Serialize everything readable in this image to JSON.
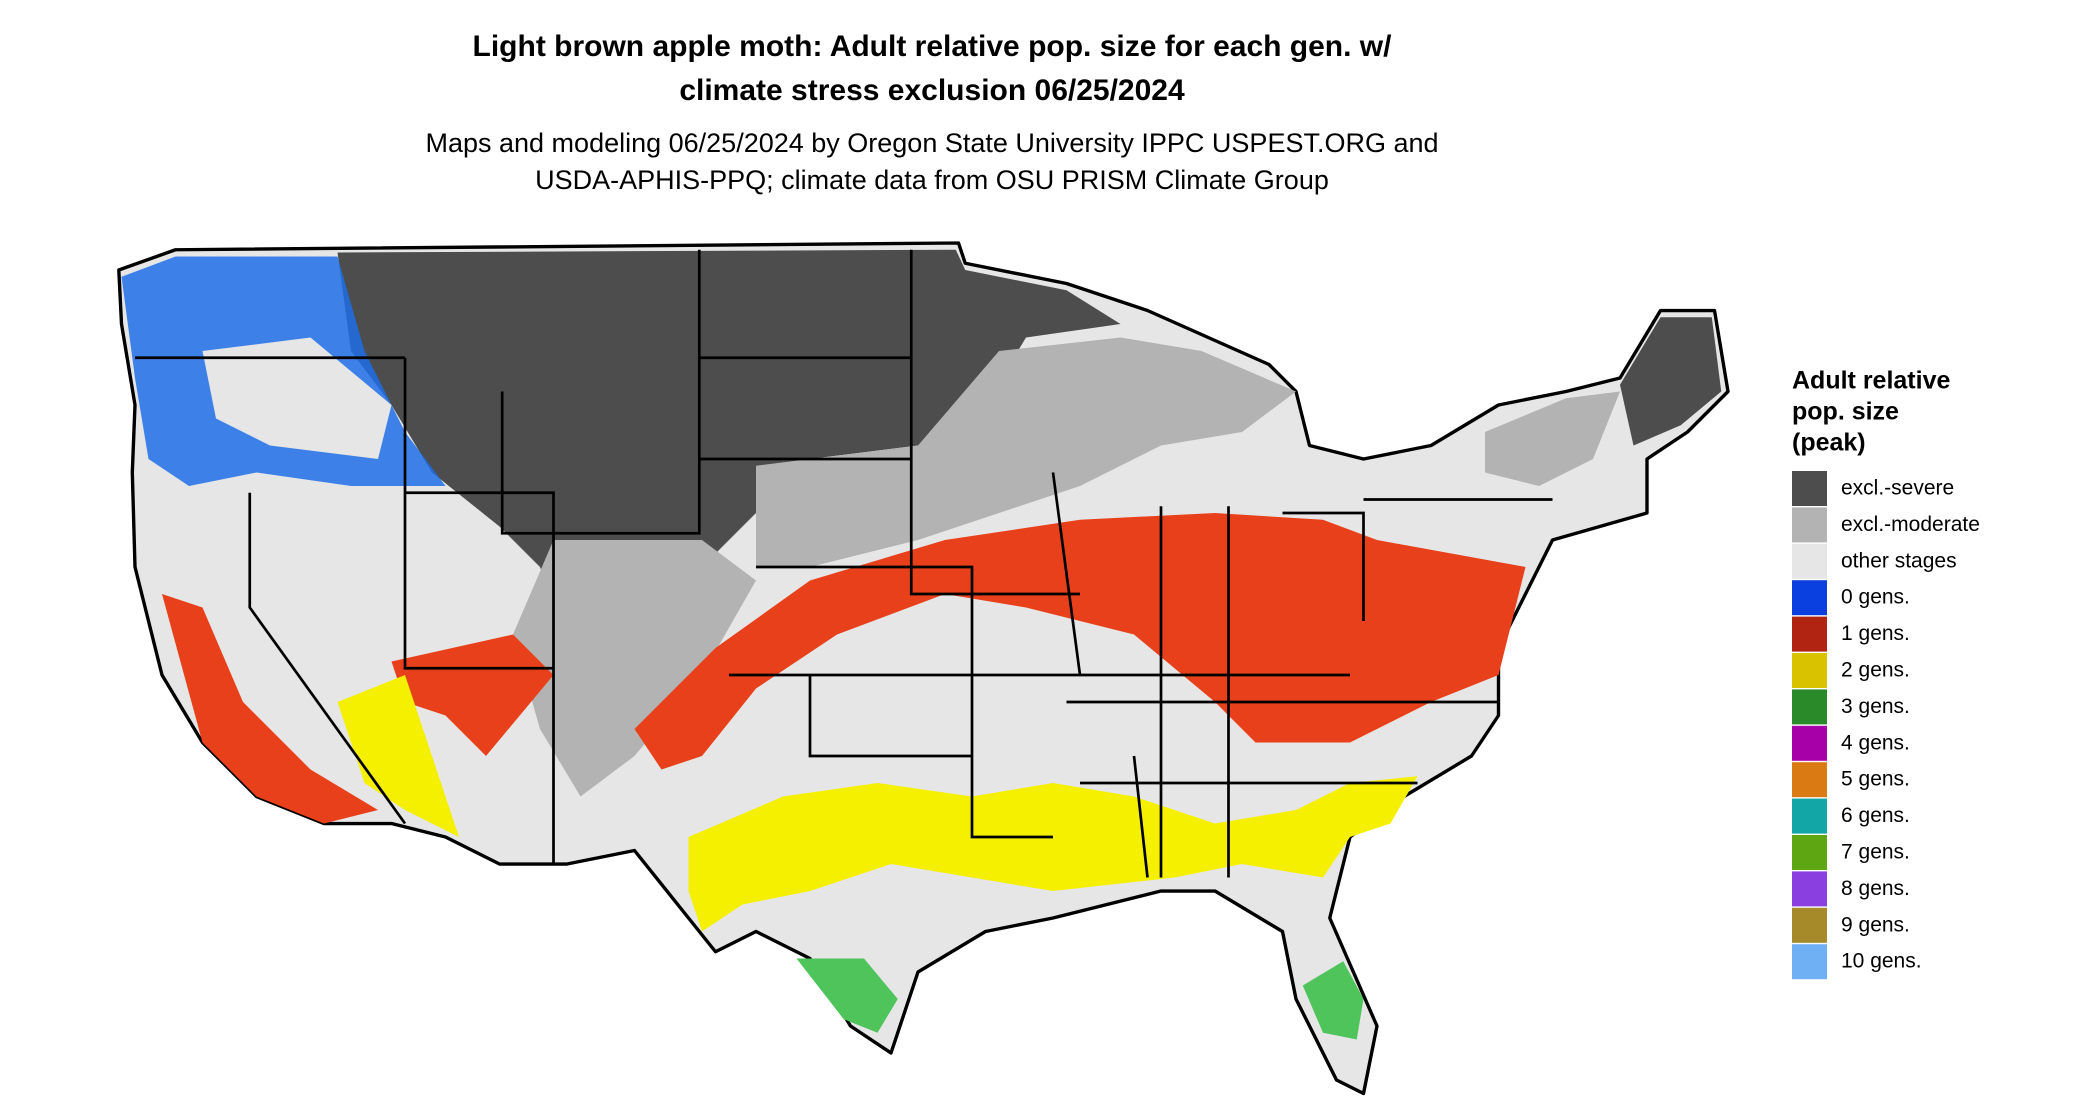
{
  "header": {
    "title_lines": [
      "Light brown apple moth: Adult relative pop. size for each gen. w/",
      "climate stress exclusion 06/25/2024"
    ],
    "subtitle_lines": [
      "Maps and modeling 06/25/2024 by Oregon State University IPPC USPEST.ORG and",
      "USDA-APHIS-PPQ; climate data from OSU PRISM Climate Group"
    ]
  },
  "legend": {
    "title_lines": [
      "Adult relative",
      "pop. size",
      "(peak)"
    ],
    "items": [
      {
        "label": "excl.-severe",
        "color": "#4d4d4d"
      },
      {
        "label": "excl.-moderate",
        "color": "#b3b3b3"
      },
      {
        "label": "other stages",
        "color": "#e6e6e6"
      },
      {
        "label": "0 gens.",
        "color": "#0a3fe0"
      },
      {
        "label": "1 gens.",
        "color": "#b22412"
      },
      {
        "label": "2 gens.",
        "color": "#d9c300"
      },
      {
        "label": "3 gens.",
        "color": "#2a8a2a"
      },
      {
        "label": "4 gens.",
        "color": "#a800a8"
      },
      {
        "label": "5 gens.",
        "color": "#d97a12"
      },
      {
        "label": "6 gens.",
        "color": "#12a6a6"
      },
      {
        "label": "7 gens.",
        "color": "#5ea612"
      },
      {
        "label": "8 gens.",
        "color": "#8a3fe0"
      },
      {
        "label": "9 gens.",
        "color": "#a68a2a"
      },
      {
        "label": "10 gens.",
        "color": "#6fb0f5"
      }
    ]
  }
}
